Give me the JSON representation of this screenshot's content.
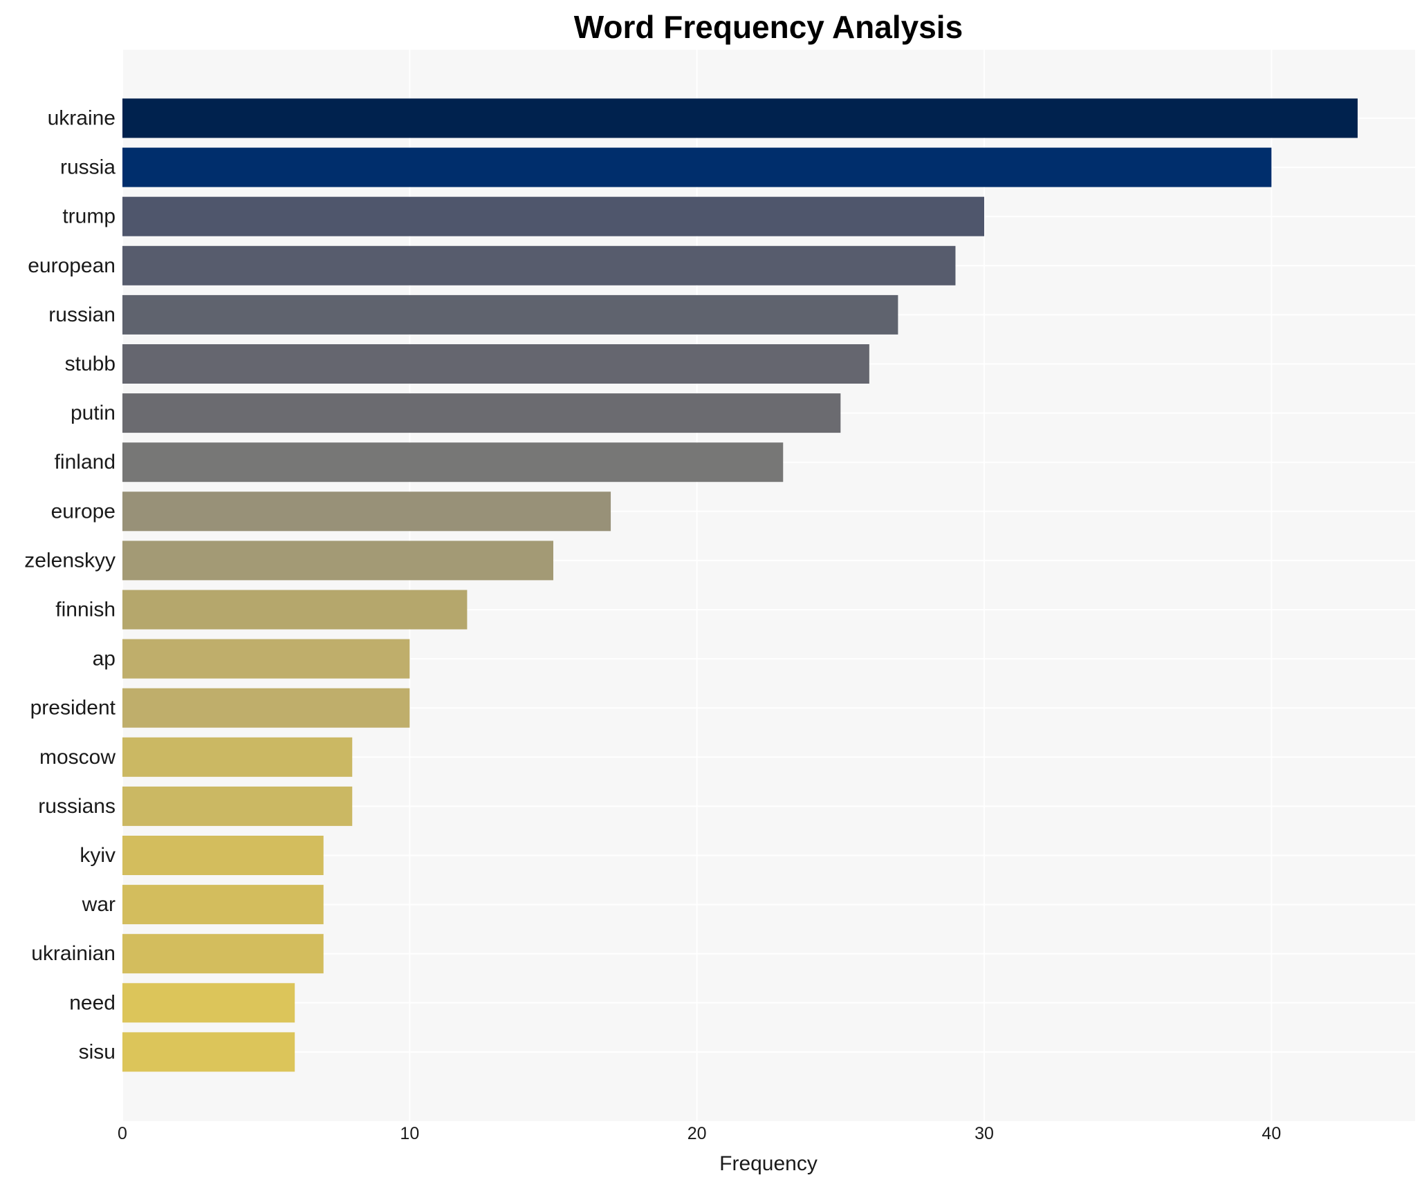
{
  "chart_data": {
    "type": "bar",
    "orientation": "horizontal",
    "title": "Word Frequency Analysis",
    "xlabel": "Frequency",
    "ylabel": "",
    "xlim": [
      0,
      45
    ],
    "xticks": [
      0,
      10,
      20,
      30,
      40
    ],
    "grid": true,
    "categories": [
      "ukraine",
      "russia",
      "trump",
      "european",
      "russian",
      "stubb",
      "putin",
      "finland",
      "europe",
      "zelenskyy",
      "finnish",
      "ap",
      "president",
      "moscow",
      "russians",
      "kyiv",
      "war",
      "ukrainian",
      "need",
      "sisu"
    ],
    "values": [
      43,
      40,
      30,
      29,
      27,
      26,
      25,
      23,
      17,
      15,
      12,
      10,
      10,
      8,
      8,
      7,
      7,
      7,
      6,
      6
    ],
    "colors": [
      "#00224e",
      "#002e6c",
      "#4f566c",
      "#575c6d",
      "#5f636e",
      "#65666f",
      "#6b6b70",
      "#777776",
      "#989178",
      "#a39a75",
      "#b5a76c",
      "#bfae6b",
      "#bfae6b",
      "#cbb863",
      "#cbb863",
      "#d3bd5d",
      "#d3bd5d",
      "#d3bd5d",
      "#dcc55a",
      "#dcc55a"
    ],
    "background": "#f7f7f7",
    "grid_color": "#ffffff"
  }
}
